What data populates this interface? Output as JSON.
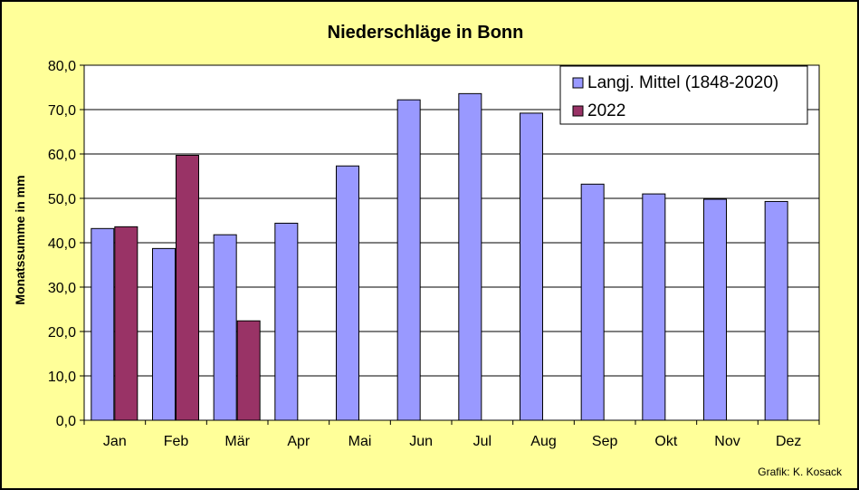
{
  "chart_data": {
    "type": "bar",
    "title": "Niederschläge in Bonn",
    "xlabel": "",
    "ylabel": "Monatssumme in mm",
    "ylim": [
      0,
      80
    ],
    "yticks": [
      "0,0",
      "10,0",
      "20,0",
      "30,0",
      "40,0",
      "50,0",
      "60,0",
      "70,0",
      "80,0"
    ],
    "grid": true,
    "legend_position": "top-right",
    "categories": [
      "Jan",
      "Feb",
      "Mär",
      "Apr",
      "Mai",
      "Jun",
      "Jul",
      "Aug",
      "Sep",
      "Okt",
      "Nov",
      "Dez"
    ],
    "series": [
      {
        "name": "Langj. Mittel (1848-2020)",
        "color": "#9999ff",
        "values": [
          43.2,
          38.7,
          41.8,
          44.4,
          57.3,
          72.2,
          73.6,
          69.2,
          53.2,
          51.0,
          49.8,
          49.3
        ]
      },
      {
        "name": "2022",
        "color": "#993366",
        "values": [
          43.6,
          59.7,
          22.4,
          null,
          null,
          null,
          null,
          null,
          null,
          null,
          null,
          null
        ]
      }
    ],
    "credit": "Grafik:  K. Kosack"
  },
  "colors": {
    "background": "#ffff99",
    "plot_area": "#ffffff",
    "series_1": "#9999ff",
    "series_2": "#993366"
  }
}
